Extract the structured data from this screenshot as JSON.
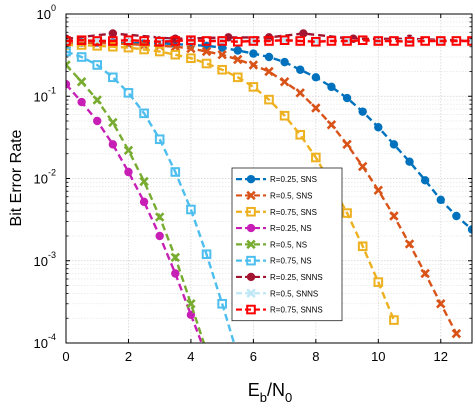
{
  "chart_data": {
    "type": "line",
    "title": "",
    "ylabel": "Bit Error Rate",
    "xlabel_parts": [
      "E",
      "b",
      "/N",
      "0"
    ],
    "xlim": [
      0,
      13
    ],
    "ylim": [
      0.0001,
      1
    ],
    "yscale": "log",
    "grid": true,
    "legend_position": "inside-right",
    "x_ticks": [
      0,
      2,
      4,
      6,
      8,
      10,
      12
    ],
    "x_tick_labels": [
      "0",
      "2",
      "4",
      "6",
      "8",
      "10",
      "12"
    ],
    "y_ticks": [
      {
        "value": 1,
        "base": "10",
        "exp": "0"
      },
      {
        "value": 0.1,
        "base": "10",
        "exp": "-1"
      },
      {
        "value": 0.01,
        "base": "10",
        "exp": "-2"
      },
      {
        "value": 0.001,
        "base": "10",
        "exp": "-3"
      },
      {
        "value": 0.0001,
        "base": "10",
        "exp": "-4"
      }
    ],
    "series": [
      {
        "name": "R=0.25, SNS",
        "color": "#0072BD",
        "marker": "circle",
        "x": [
          0,
          0.5,
          1,
          1.5,
          2,
          2.5,
          3,
          3.5,
          4,
          4.5,
          5,
          5.5,
          6,
          6.5,
          7,
          7.5,
          8,
          8.5,
          9,
          9.5,
          10,
          10.5,
          11,
          11.5,
          12,
          12.5,
          13
        ],
        "y": [
          0.45,
          0.45,
          0.45,
          0.45,
          0.45,
          0.44,
          0.44,
          0.43,
          0.42,
          0.41,
          0.39,
          0.36,
          0.33,
          0.3,
          0.26,
          0.21,
          0.17,
          0.13,
          0.095,
          0.065,
          0.042,
          0.026,
          0.016,
          0.0095,
          0.0055,
          0.0035,
          0.0024
        ]
      },
      {
        "name": "R=0.5, SNS",
        "color": "#D95319",
        "marker": "x",
        "x": [
          0,
          0.5,
          1,
          1.5,
          2,
          2.5,
          3,
          3.5,
          4,
          4.5,
          5,
          5.5,
          6,
          6.5,
          7,
          7.5,
          8,
          8.5,
          9,
          9.5,
          10,
          10.5,
          11,
          11.5,
          12,
          12.5
        ],
        "y": [
          0.45,
          0.45,
          0.44,
          0.44,
          0.43,
          0.42,
          0.41,
          0.4,
          0.38,
          0.35,
          0.32,
          0.28,
          0.24,
          0.2,
          0.15,
          0.11,
          0.072,
          0.045,
          0.026,
          0.014,
          0.0072,
          0.0035,
          0.0016,
          0.0007,
          0.0003,
          0.00013
        ]
      },
      {
        "name": "R=0.75, SNS",
        "color": "#EDB120",
        "marker": "square",
        "x": [
          0,
          0.5,
          1,
          1.5,
          2,
          2.5,
          3,
          3.5,
          4,
          4.5,
          5,
          5.5,
          6,
          6.5,
          7,
          7.5,
          8,
          8.5,
          9,
          9.5,
          10,
          10.5
        ],
        "y": [
          0.42,
          0.42,
          0.41,
          0.4,
          0.39,
          0.37,
          0.35,
          0.32,
          0.29,
          0.25,
          0.21,
          0.17,
          0.13,
          0.091,
          0.058,
          0.034,
          0.018,
          0.0085,
          0.0038,
          0.0015,
          0.00055,
          0.00019
        ]
      },
      {
        "name": "R=0.25, NS",
        "color": "#C71FB5",
        "marker": "circle",
        "x": [
          0,
          0.5,
          1,
          1.5,
          2,
          2.5,
          3,
          3.5,
          4,
          4.5
        ],
        "y": [
          0.14,
          0.085,
          0.05,
          0.026,
          0.012,
          0.0052,
          0.002,
          0.0007,
          0.00022,
          7e-05
        ]
      },
      {
        "name": "R=0.5, NS",
        "color": "#77AC30",
        "marker": "x",
        "x": [
          0,
          0.5,
          1,
          1.5,
          2,
          2.5,
          3,
          3.5,
          4,
          4.5
        ],
        "y": [
          0.24,
          0.15,
          0.09,
          0.048,
          0.022,
          0.0092,
          0.0034,
          0.0011,
          0.0003,
          8e-05
        ]
      },
      {
        "name": "R=0.75, NS",
        "color": "#4DBEEE",
        "marker": "square",
        "x": [
          0,
          0.5,
          1,
          1.5,
          2,
          2.5,
          3,
          3.5,
          4,
          4.5,
          5,
          5.5
        ],
        "y": [
          0.35,
          0.3,
          0.24,
          0.17,
          0.11,
          0.062,
          0.03,
          0.012,
          0.0042,
          0.0012,
          0.0003,
          7e-05
        ]
      },
      {
        "name": "R=0.25, SNNS",
        "color": "#A2142F",
        "marker": "circle",
        "x": [
          0,
          1.5,
          3.5,
          5.2,
          6.5,
          7.6,
          9.2,
          11,
          13
        ],
        "y": [
          0.5,
          0.58,
          0.5,
          0.52,
          0.52,
          0.58,
          0.5,
          0.5,
          0.47
        ]
      },
      {
        "name": "R=0.5, SNNS",
        "color": "#BFE7F5",
        "marker": "x",
        "x": [
          0,
          1,
          2,
          3,
          4,
          5,
          6,
          7,
          8,
          9,
          10,
          11,
          12,
          13
        ],
        "y": [
          0.47,
          0.48,
          0.47,
          0.48,
          0.47,
          0.48,
          0.47,
          0.48,
          0.47,
          0.48,
          0.47,
          0.48,
          0.47,
          0.47
        ]
      },
      {
        "name": "R=0.75, SNNS",
        "color": "#FF0000",
        "marker": "square",
        "x": [
          0,
          0.5,
          1,
          1.5,
          2,
          2.5,
          3,
          3.5,
          4,
          4.5,
          5,
          5.5,
          6,
          6.5,
          7,
          7.5,
          8,
          8.5,
          9,
          9.5,
          10,
          10.5,
          11,
          11.5,
          12,
          12.5,
          13
        ],
        "y": [
          0.47,
          0.48,
          0.47,
          0.47,
          0.48,
          0.47,
          0.46,
          0.47,
          0.48,
          0.47,
          0.47,
          0.46,
          0.47,
          0.47,
          0.48,
          0.47,
          0.46,
          0.47,
          0.47,
          0.48,
          0.47,
          0.47,
          0.46,
          0.47,
          0.47,
          0.47,
          0.47
        ]
      }
    ]
  }
}
